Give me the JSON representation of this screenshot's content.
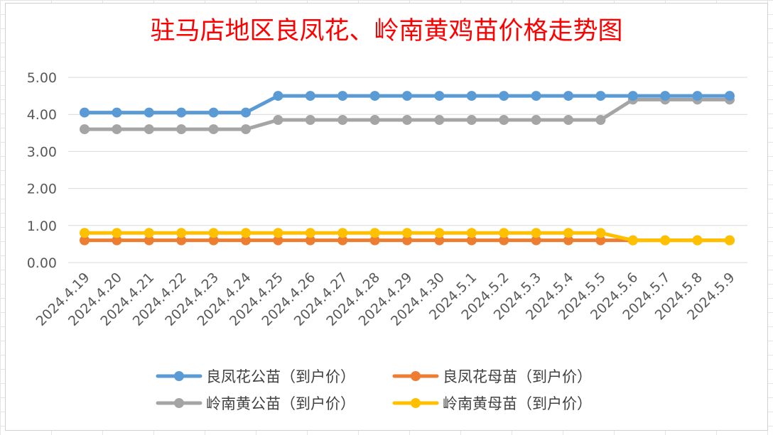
{
  "chart_data": {
    "type": "line",
    "title": "驻马店地区良凤花、岭南黄鸡苗价格走势图",
    "xlabel": "",
    "ylabel": "",
    "ylim": [
      0,
      5
    ],
    "yticks": [
      "0.00",
      "1.00",
      "2.00",
      "3.00",
      "4.00",
      "5.00"
    ],
    "grid": true,
    "legend_position": "bottom",
    "categories": [
      "2024.4.19",
      "2024.4.20",
      "2024.4.21",
      "2024.4.22",
      "2024.4.23",
      "2024.4.24",
      "2024.4.25",
      "2024.4.26",
      "2024.4.27",
      "2024.4.28",
      "2024.4.29",
      "2024.4.30",
      "2024.5.1",
      "2024.5.2",
      "2024.5.3",
      "2024.5.4",
      "2024.5.5",
      "2024.5.6",
      "2024.5.7",
      "2024.5.8",
      "2024.5.9"
    ],
    "series": [
      {
        "name": "良凤花公苗（到户价）",
        "color": "#5b9bd5",
        "values": [
          4.05,
          4.05,
          4.05,
          4.05,
          4.05,
          4.05,
          4.5,
          4.5,
          4.5,
          4.5,
          4.5,
          4.5,
          4.5,
          4.5,
          4.5,
          4.5,
          4.5,
          4.5,
          4.5,
          4.5,
          4.5
        ]
      },
      {
        "name": "良凤花母苗（到户价）",
        "color": "#ed7d31",
        "values": [
          0.6,
          0.6,
          0.6,
          0.6,
          0.6,
          0.6,
          0.6,
          0.6,
          0.6,
          0.6,
          0.6,
          0.6,
          0.6,
          0.6,
          0.6,
          0.6,
          0.6,
          0.6,
          0.6,
          0.6,
          0.6
        ]
      },
      {
        "name": "岭南黄公苗（到户价）",
        "color": "#a5a5a5",
        "values": [
          3.6,
          3.6,
          3.6,
          3.6,
          3.6,
          3.6,
          3.85,
          3.85,
          3.85,
          3.85,
          3.85,
          3.85,
          3.85,
          3.85,
          3.85,
          3.85,
          3.85,
          4.4,
          4.4,
          4.4,
          4.4
        ]
      },
      {
        "name": "岭南黄母苗（到户价）",
        "color": "#ffc000",
        "values": [
          0.8,
          0.8,
          0.8,
          0.8,
          0.8,
          0.8,
          0.8,
          0.8,
          0.8,
          0.8,
          0.8,
          0.8,
          0.8,
          0.8,
          0.8,
          0.8,
          0.8,
          0.6,
          0.6,
          0.6,
          0.6
        ]
      }
    ],
    "legend_order": [
      0,
      1,
      2,
      3
    ]
  }
}
